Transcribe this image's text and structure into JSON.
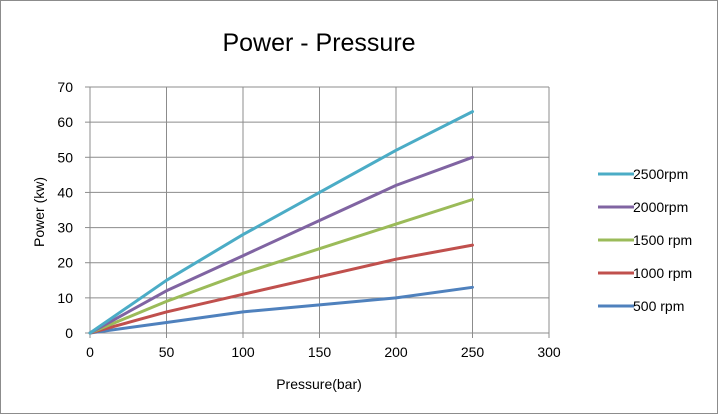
{
  "chart_data": {
    "type": "line",
    "title": "Power - Pressure",
    "xlabel": "Pressure(bar)",
    "ylabel": "Power (kw)",
    "xlim": [
      0,
      300
    ],
    "ylim": [
      0,
      70
    ],
    "x_ticks": [
      0,
      50,
      100,
      150,
      200,
      250,
      300
    ],
    "y_ticks": [
      0,
      10,
      20,
      30,
      40,
      50,
      60,
      70
    ],
    "grid": true,
    "legend_position": "right",
    "x": [
      0,
      50,
      100,
      150,
      200,
      250
    ],
    "series": [
      {
        "name": "2500rpm",
        "color": "#4bacc6",
        "values": [
          0,
          15,
          28,
          40,
          52,
          63
        ]
      },
      {
        "name": "2000rpm",
        "color": "#8064a2",
        "values": [
          0,
          12,
          22,
          32,
          42,
          50
        ]
      },
      {
        "name": "1500 rpm",
        "color": "#9bbb59",
        "values": [
          0,
          9,
          17,
          24,
          31,
          38
        ]
      },
      {
        "name": "1000 rpm",
        "color": "#c0504d",
        "values": [
          0,
          6,
          11,
          16,
          21,
          25
        ]
      },
      {
        "name": "500 rpm",
        "color": "#4f81bd",
        "values": [
          0,
          3,
          6,
          8,
          10,
          13
        ]
      }
    ]
  }
}
